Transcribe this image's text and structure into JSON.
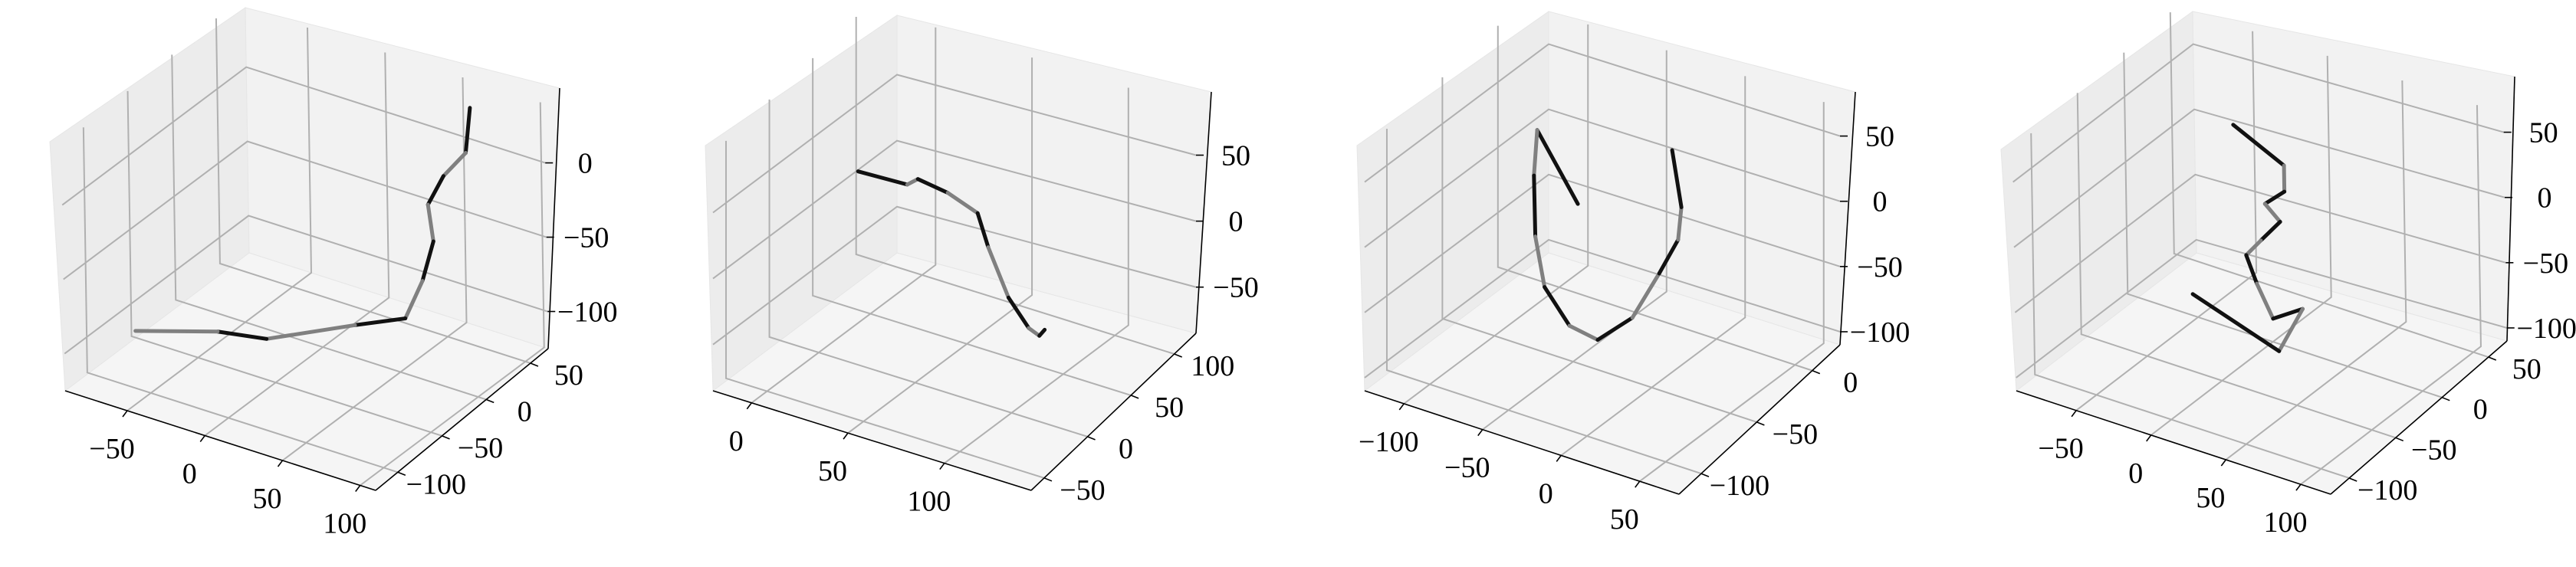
{
  "chart_data": [
    {
      "type": "line3d",
      "title": "",
      "x_ticks": [
        "−50",
        "0",
        "50",
        "100"
      ],
      "y_ticks": [
        "50",
        "0",
        "−50",
        "−100"
      ],
      "z_ticks": [
        "0",
        "−50",
        "−100"
      ],
      "grid": true,
      "line_colors": [
        "#111111",
        "#808080"
      ],
      "series": [
        {
          "points": [
            [
              78,
              42,
              40
            ],
            [
              76,
              40,
              10
            ],
            [
              66,
              32,
              -5
            ],
            [
              58,
              28,
              -25
            ],
            [
              60,
              30,
              -50
            ],
            [
              56,
              24,
              -75
            ],
            [
              48,
              18,
              -100
            ],
            [
              20,
              10,
              -110
            ],
            [
              -20,
              -20,
              -118
            ],
            [
              -40,
              -40,
              -110
            ],
            [
              -70,
              -80,
              -100
            ]
          ]
        }
      ]
    },
    {
      "type": "line3d",
      "title": "",
      "x_ticks": [
        "0",
        "50",
        "100"
      ],
      "y_ticks": [
        "100",
        "50",
        "0",
        "−50"
      ],
      "z_ticks": [
        "50",
        "0",
        "−50"
      ],
      "grid": true,
      "line_colors": [
        "#111111",
        "#808080"
      ],
      "series": [
        {
          "points": [
            [
              -10,
              80,
              -5
            ],
            [
              20,
              70,
              5
            ],
            [
              30,
              60,
              20
            ],
            [
              50,
              50,
              25
            ],
            [
              70,
              40,
              25
            ],
            [
              80,
              30,
              10
            ],
            [
              95,
              20,
              -15
            ],
            [
              110,
              10,
              -25
            ],
            [
              120,
              0,
              -20
            ],
            [
              125,
              -5,
              -10
            ]
          ]
        }
      ]
    },
    {
      "type": "line3d",
      "title": "",
      "x_ticks": [
        "−100",
        "−50",
        "0",
        "50"
      ],
      "y_ticks": [
        "0",
        "−50",
        "−100"
      ],
      "z_ticks": [
        "50",
        "0",
        "−50",
        "−100"
      ],
      "grid": true,
      "line_colors": [
        "#111111",
        "#808080"
      ],
      "series": [
        {
          "points": [
            [
              -60,
              -20,
              -20
            ],
            [
              -100,
              0,
              5
            ],
            [
              -95,
              -10,
              -20
            ],
            [
              -80,
              -30,
              -45
            ],
            [
              -60,
              -50,
              -60
            ],
            [
              -30,
              -70,
              -62
            ],
            [
              -5,
              -80,
              -55
            ],
            [
              10,
              -70,
              -40
            ],
            [
              20,
              -60,
              -10
            ],
            [
              25,
              -50,
              10
            ],
            [
              20,
              -40,
              25
            ],
            [
              0,
              -20,
              45
            ]
          ]
        }
      ]
    },
    {
      "type": "line3d",
      "title": "",
      "x_ticks": [
        "−50",
        "0",
        "50",
        "100"
      ],
      "y_ticks": [
        "50",
        "0",
        "−50",
        "−100"
      ],
      "z_ticks": [
        "50",
        "0",
        "−50",
        "−100"
      ],
      "grid": true,
      "line_colors": [
        "#111111",
        "#808080"
      ],
      "series": [
        {
          "points": [
            [
              -30,
              20,
              30
            ],
            [
              10,
              10,
              20
            ],
            [
              10,
              10,
              0
            ],
            [
              0,
              5,
              -10
            ],
            [
              10,
              5,
              -20
            ],
            [
              0,
              0,
              -35
            ],
            [
              -10,
              0,
              -50
            ],
            [
              0,
              -5,
              -65
            ],
            [
              20,
              -20,
              -75
            ],
            [
              40,
              -20,
              -60
            ],
            [
              30,
              -30,
              -90
            ],
            [
              -40,
              -10,
              -85
            ]
          ]
        }
      ]
    }
  ]
}
